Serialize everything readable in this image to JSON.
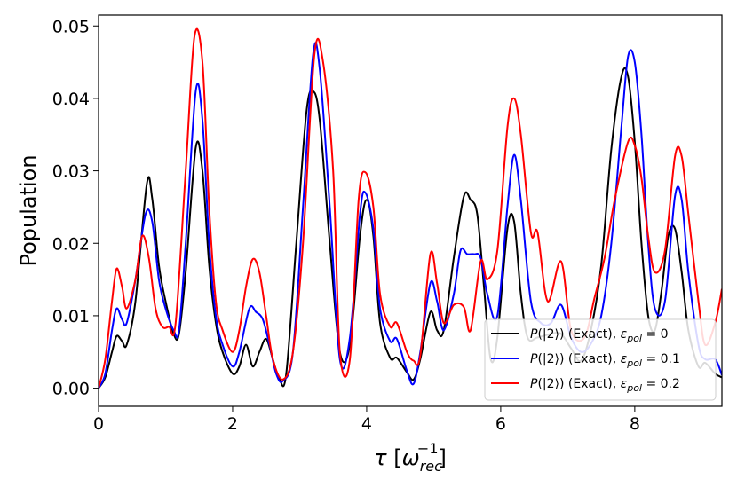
{
  "chart_data": {
    "type": "line",
    "title": "",
    "xlabel": "τ [ω_rec^-1]",
    "ylabel": "Population",
    "xlim": [
      0,
      9.3
    ],
    "ylim": [
      -0.0025,
      0.0515
    ],
    "xticks": [
      0,
      2,
      4,
      6,
      8
    ],
    "xtick_labels": [
      "0",
      "2",
      "4",
      "6",
      "8"
    ],
    "yticks": [
      0.0,
      0.01,
      0.02,
      0.03,
      0.04,
      0.05
    ],
    "ytick_labels": [
      "0.00",
      "0.01",
      "0.02",
      "0.03",
      "0.04",
      "0.05"
    ],
    "legend_position": "lower-right",
    "series": [
      {
        "name": "P(|2⟩) (Exact), ε_pol = 0",
        "legend_text": "P(|2⟩) (Exact), ",
        "legend_eps": "ε",
        "legend_sub": "pol",
        "legend_val": " = 0",
        "color": "#000000",
        "x": [
          0,
          0.1,
          0.2,
          0.27,
          0.35,
          0.42,
          0.55,
          0.72,
          0.8,
          0.9,
          1.0,
          1.12,
          1.2,
          1.3,
          1.45,
          1.55,
          1.65,
          1.75,
          1.85,
          2.0,
          2.1,
          2.2,
          2.3,
          2.4,
          2.5,
          2.6,
          2.7,
          2.8,
          2.95,
          3.1,
          3.2,
          3.3,
          3.45,
          3.6,
          3.75,
          3.9,
          4.0,
          4.1,
          4.2,
          4.35,
          4.45,
          4.6,
          4.7,
          4.8,
          4.95,
          5.05,
          5.15,
          5.3,
          5.45,
          5.55,
          5.65,
          5.75,
          5.85,
          5.95,
          6.1,
          6.2,
          6.3,
          6.4,
          6.55,
          6.75,
          6.9,
          7.05,
          7.2,
          7.35,
          7.5,
          7.65,
          7.8,
          7.9,
          8.0,
          8.1,
          8.2,
          8.3,
          8.4,
          8.5,
          8.6,
          8.7,
          8.8,
          8.95,
          9.05,
          9.2,
          9.3
        ],
        "y": [
          0,
          0.0015,
          0.005,
          0.0072,
          0.0065,
          0.006,
          0.012,
          0.0282,
          0.0262,
          0.017,
          0.012,
          0.0075,
          0.0075,
          0.016,
          0.0332,
          0.03,
          0.017,
          0.009,
          0.005,
          0.002,
          0.003,
          0.006,
          0.003,
          0.005,
          0.0068,
          0.004,
          0.0012,
          0.002,
          0.02,
          0.038,
          0.041,
          0.037,
          0.02,
          0.005,
          0.006,
          0.021,
          0.026,
          0.021,
          0.009,
          0.0042,
          0.0042,
          0.0022,
          0.0012,
          0.004,
          0.0105,
          0.008,
          0.008,
          0.018,
          0.0265,
          0.026,
          0.024,
          0.014,
          0.004,
          0.007,
          0.022,
          0.023,
          0.013,
          0.007,
          0.007,
          0.0075,
          0.0075,
          0.0055,
          0.0038,
          0.0082,
          0.017,
          0.033,
          0.043,
          0.043,
          0.034,
          0.02,
          0.01,
          0.008,
          0.0135,
          0.021,
          0.022,
          0.016,
          0.008,
          0.003,
          0.0035,
          0.002,
          0.0015
        ]
      },
      {
        "name": "P(|2⟩) (Exact), ε_pol = 0.1",
        "legend_text": "P(|2⟩) (Exact), ",
        "legend_eps": "ε",
        "legend_sub": "pol",
        "legend_val": " = 0.1",
        "color": "#0000ff",
        "x": [
          0,
          0.1,
          0.2,
          0.27,
          0.35,
          0.42,
          0.55,
          0.7,
          0.8,
          0.9,
          1.0,
          1.12,
          1.2,
          1.3,
          1.45,
          1.55,
          1.65,
          1.75,
          1.85,
          2.0,
          2.1,
          2.25,
          2.35,
          2.45,
          2.55,
          2.65,
          2.75,
          2.9,
          3.05,
          3.2,
          3.3,
          3.45,
          3.6,
          3.75,
          3.9,
          3.98,
          4.1,
          4.2,
          4.35,
          4.45,
          4.6,
          4.7,
          4.8,
          4.95,
          5.05,
          5.15,
          5.3,
          5.4,
          5.5,
          5.6,
          5.7,
          5.8,
          5.95,
          6.1,
          6.2,
          6.3,
          6.45,
          6.6,
          6.75,
          6.9,
          7.05,
          7.2,
          7.35,
          7.5,
          7.65,
          7.8,
          7.9,
          8.0,
          8.1,
          8.2,
          8.3,
          8.45,
          8.6,
          8.7,
          8.8,
          8.95,
          9.05,
          9.2,
          9.3
        ],
        "y": [
          0,
          0.002,
          0.008,
          0.011,
          0.0095,
          0.009,
          0.015,
          0.024,
          0.023,
          0.015,
          0.011,
          0.008,
          0.008,
          0.02,
          0.041,
          0.037,
          0.02,
          0.01,
          0.006,
          0.003,
          0.005,
          0.011,
          0.0105,
          0.0095,
          0.006,
          0.002,
          0.001,
          0.005,
          0.025,
          0.046,
          0.044,
          0.025,
          0.004,
          0.007,
          0.024,
          0.027,
          0.022,
          0.011,
          0.0065,
          0.0068,
          0.0024,
          0.0006,
          0.005,
          0.0145,
          0.012,
          0.008,
          0.013,
          0.019,
          0.0185,
          0.0185,
          0.018,
          0.013,
          0.01,
          0.025,
          0.0322,
          0.026,
          0.012,
          0.009,
          0.009,
          0.0115,
          0.007,
          0.005,
          0.0062,
          0.01,
          0.02,
          0.036,
          0.0458,
          0.045,
          0.035,
          0.02,
          0.011,
          0.012,
          0.0265,
          0.026,
          0.016,
          0.006,
          0.004,
          0.004,
          0.0018
        ]
      },
      {
        "name": "P(|2⟩) (Exact), ε_pol = 0.2",
        "legend_text": "P(|2⟩) (Exact), ",
        "legend_eps": "ε",
        "legend_sub": "pol",
        "legend_val": " = 0.2",
        "color": "#ff0000",
        "x": [
          0,
          0.1,
          0.2,
          0.27,
          0.35,
          0.42,
          0.55,
          0.65,
          0.75,
          0.85,
          0.95,
          1.05,
          1.15,
          1.3,
          1.43,
          1.55,
          1.65,
          1.75,
          1.85,
          2.0,
          2.1,
          2.2,
          2.3,
          2.4,
          2.5,
          2.6,
          2.75,
          2.9,
          3.05,
          3.22,
          3.35,
          3.5,
          3.6,
          3.75,
          3.88,
          3.98,
          4.1,
          4.2,
          4.35,
          4.45,
          4.6,
          4.7,
          4.8,
          4.95,
          5.05,
          5.15,
          5.3,
          5.45,
          5.55,
          5.7,
          5.8,
          5.95,
          6.1,
          6.2,
          6.3,
          6.45,
          6.55,
          6.7,
          6.9,
          7.05,
          7.25,
          7.4,
          7.55,
          7.7,
          7.9,
          8.0,
          8.1,
          8.2,
          8.3,
          8.45,
          8.6,
          8.7,
          8.8,
          8.95,
          9.05,
          9.2,
          9.3
        ],
        "y": [
          0,
          0.004,
          0.012,
          0.0165,
          0.014,
          0.011,
          0.015,
          0.021,
          0.018,
          0.011,
          0.0085,
          0.0085,
          0.009,
          0.03,
          0.0485,
          0.045,
          0.025,
          0.012,
          0.008,
          0.005,
          0.008,
          0.014,
          0.0178,
          0.016,
          0.01,
          0.004,
          0.0012,
          0.005,
          0.02,
          0.046,
          0.045,
          0.03,
          0.005,
          0.004,
          0.026,
          0.0298,
          0.025,
          0.013,
          0.0085,
          0.009,
          0.005,
          0.0038,
          0.0045,
          0.0185,
          0.0145,
          0.009,
          0.0115,
          0.0112,
          0.008,
          0.0175,
          0.015,
          0.019,
          0.036,
          0.04,
          0.035,
          0.0215,
          0.0215,
          0.012,
          0.0175,
          0.008,
          0.007,
          0.0125,
          0.018,
          0.026,
          0.034,
          0.0335,
          0.029,
          0.021,
          0.016,
          0.019,
          0.032,
          0.032,
          0.024,
          0.012,
          0.006,
          0.009,
          0.0137
        ]
      }
    ]
  }
}
